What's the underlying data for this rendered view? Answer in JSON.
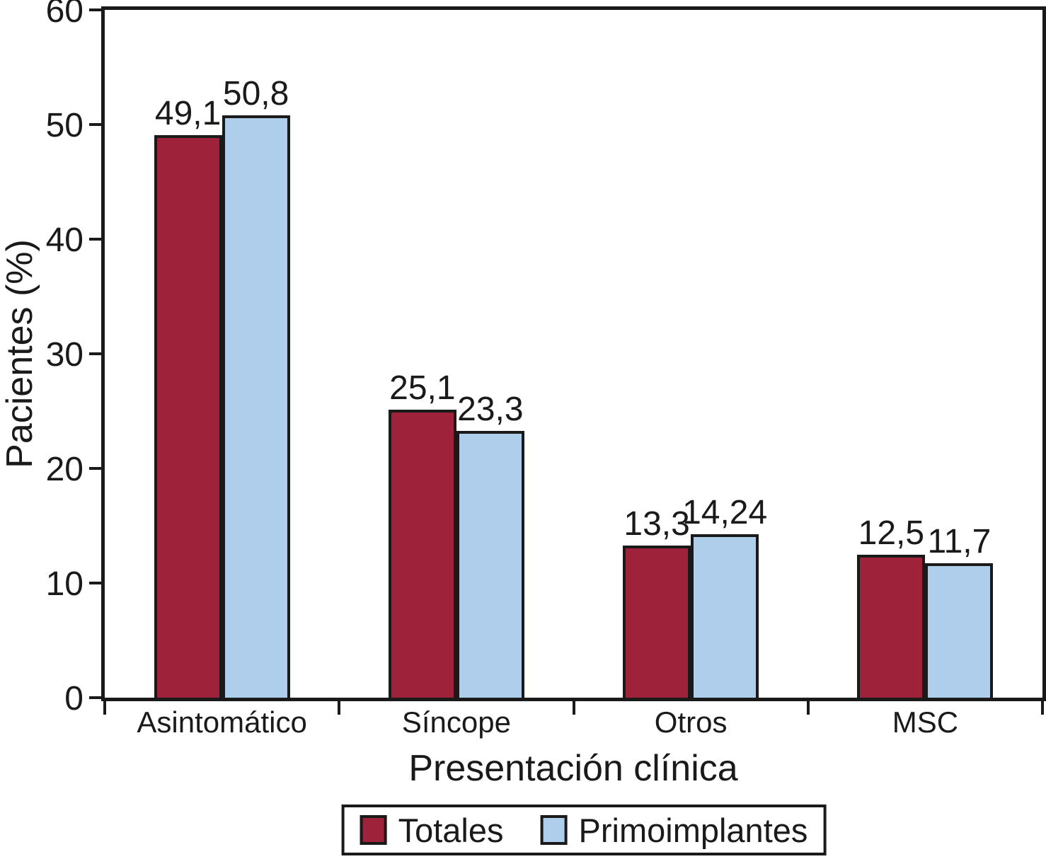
{
  "chart_data": {
    "type": "bar",
    "title": "",
    "xlabel": "Presentación clínica",
    "ylabel": "Pacientes (%)",
    "categories": [
      "Asintomático",
      "Síncope",
      "Otros",
      "MSC"
    ],
    "series": [
      {
        "name": "Totales",
        "color": "#9e2239",
        "values": [
          49.1,
          25.1,
          13.3,
          12.5
        ],
        "value_labels": [
          "49,1",
          "25,1",
          "13,3",
          "12,5"
        ]
      },
      {
        "name": "Primoimplantes",
        "color": "#afceeb",
        "values": [
          50.8,
          23.3,
          14.24,
          11.7
        ],
        "value_labels": [
          "50,8",
          "23,3",
          "14,24",
          "11,7"
        ]
      }
    ],
    "ylim": [
      0,
      60
    ],
    "yticks": [
      0,
      10,
      20,
      30,
      40,
      50,
      60
    ],
    "grid": false,
    "legend_position": "bottom",
    "axis_color": "#1a1a1a",
    "bar_border_color": "#1a1a1a",
    "background_color": "#ffffff"
  }
}
